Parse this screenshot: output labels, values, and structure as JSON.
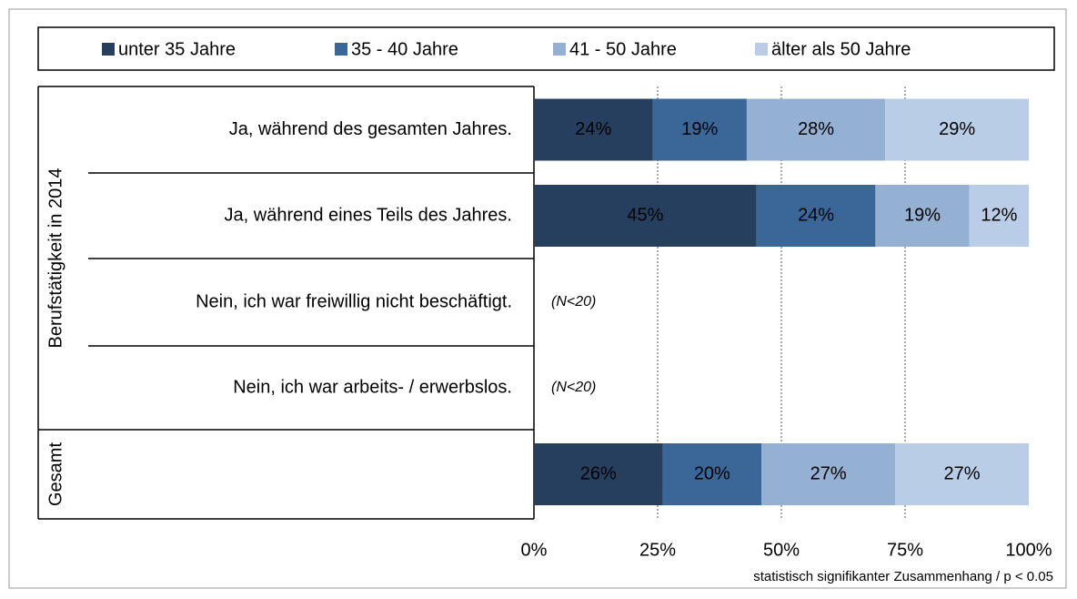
{
  "chart_data": {
    "type": "stacked_bar_horizontal",
    "categories": [
      "Ja, während des gesamten Jahres.",
      "Ja, während eines Teils des Jahres.",
      "Nein, ich war freiwillig nicht beschäftigt.",
      "Nein, ich war arbeits- / erwerbslos.",
      null
    ],
    "groups": [
      {
        "label": "Berufstätigkeit in 2014",
        "rows": [
          0,
          1,
          2,
          3
        ]
      },
      {
        "label": "Gesamt",
        "rows": [
          4
        ]
      }
    ],
    "series": [
      {
        "name": "unter 35 Jahre",
        "color": "#263f5f",
        "values": [
          24,
          45,
          null,
          null,
          26
        ],
        "value_labels": [
          "24%",
          "45%",
          null,
          null,
          "26%"
        ]
      },
      {
        "name": "35 - 40 Jahre",
        "color": "#3b6698",
        "values": [
          19,
          24,
          null,
          null,
          20
        ],
        "value_labels": [
          "19%",
          "24%",
          null,
          null,
          "20%"
        ]
      },
      {
        "name": "41 - 50 Jahre",
        "color": "#94b1d4",
        "values": [
          28,
          19,
          null,
          null,
          27
        ],
        "value_labels": [
          "28%",
          "19%",
          null,
          null,
          "27%"
        ]
      },
      {
        "name": "älter als 50 Jahre",
        "color": "#b9cde6",
        "values": [
          29,
          12,
          null,
          null,
          27
        ],
        "value_labels": [
          "29%",
          "12%",
          null,
          null,
          "27%"
        ]
      }
    ],
    "row_annotations": [
      null,
      null,
      "(N<20)",
      "(N<20)",
      null
    ],
    "xlim": [
      0,
      100
    ],
    "xticks": [
      {
        "value": 0,
        "label": "0%"
      },
      {
        "value": 25,
        "label": "25%"
      },
      {
        "value": 50,
        "label": "50%"
      },
      {
        "value": 75,
        "label": "75%"
      },
      {
        "value": 100,
        "label": "100%"
      }
    ],
    "grid": true,
    "legend": "top",
    "footnote": "statistisch signifikanter Zusammenhang / p < 0.05"
  }
}
